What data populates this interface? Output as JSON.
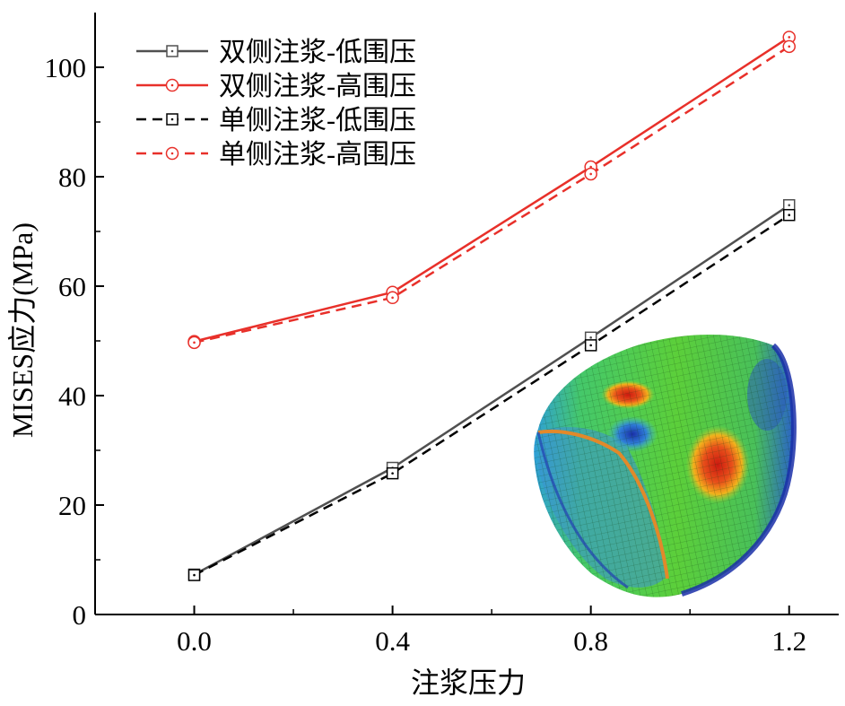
{
  "chart_data": {
    "type": "line",
    "title": "",
    "xlabel": "注浆压力",
    "ylabel": "MISES应力(MPa)",
    "xlim": [
      -0.2,
      1.3
    ],
    "ylim": [
      0,
      110
    ],
    "xticks": [
      0.0,
      0.4,
      0.8,
      1.2
    ],
    "xtick_labels": [
      "0.0",
      "0.4",
      "0.8",
      "1.2"
    ],
    "yticks": [
      0,
      20,
      40,
      60,
      80,
      100
    ],
    "ytick_labels": [
      "0",
      "20",
      "40",
      "60",
      "80",
      "100"
    ],
    "x": [
      0.0,
      0.4,
      0.8,
      1.2
    ],
    "legend_position": "top-left",
    "series": [
      {
        "name": "双侧注浆-低围压",
        "values": [
          7.3,
          26.8,
          50.6,
          74.8
        ],
        "color": "#505050",
        "dash": "solid",
        "marker": "square"
      },
      {
        "name": "双侧注浆-高围压",
        "values": [
          49.9,
          58.9,
          81.8,
          105.5
        ],
        "color": "#e8302a",
        "dash": "solid",
        "marker": "circle"
      },
      {
        "name": "单侧注浆-低围压",
        "values": [
          7.2,
          25.8,
          49.2,
          73.0
        ],
        "color": "#000000",
        "dash": "dashed",
        "marker": "square"
      },
      {
        "name": "单侧注浆-高围压",
        "values": [
          49.7,
          57.9,
          80.5,
          103.8
        ],
        "color": "#e8302a",
        "dash": "dashed",
        "marker": "circle"
      }
    ],
    "inset": "deformed cylindrical shell contour plot (stress distribution, blue to red)"
  }
}
